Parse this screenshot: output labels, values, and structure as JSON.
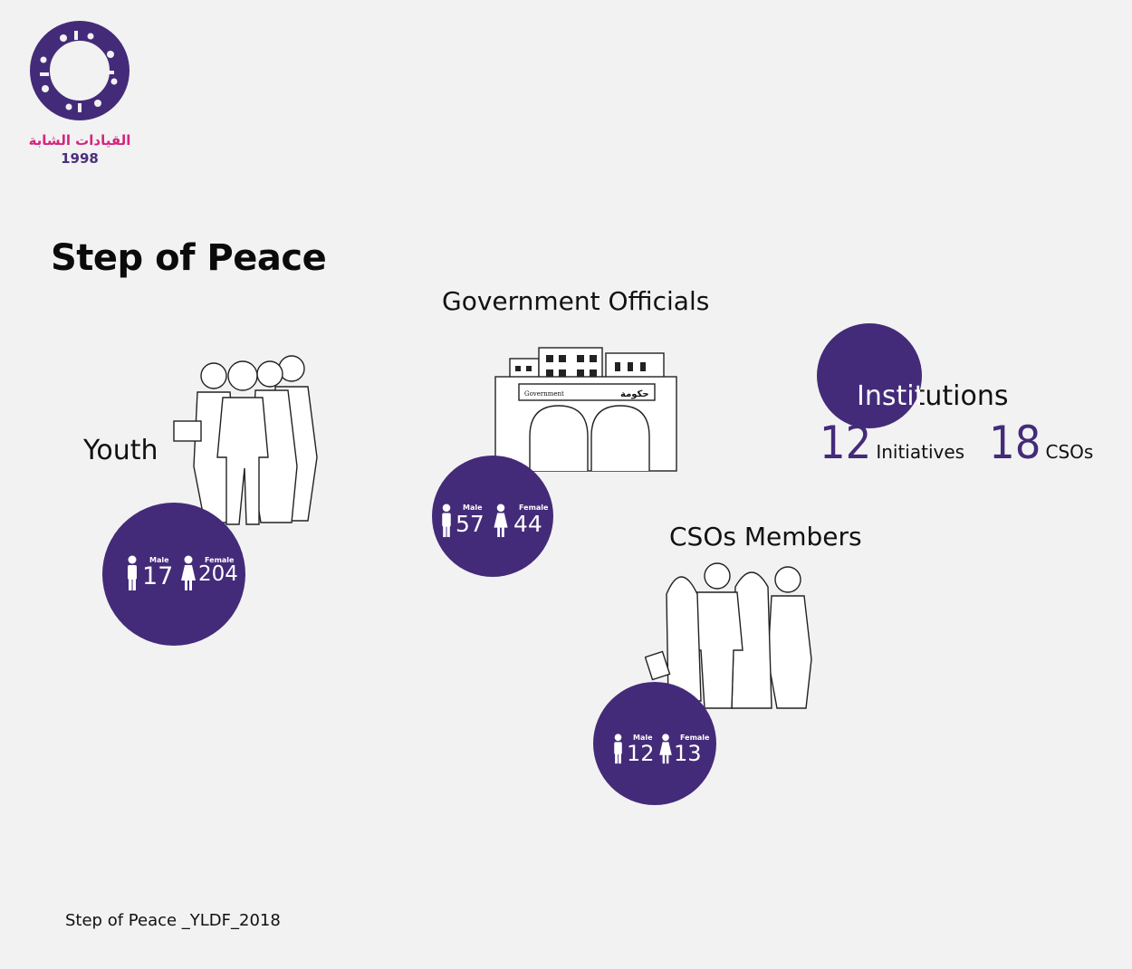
{
  "header": {
    "logo_arabic": "القيادات الشابة",
    "logo_year": "1998",
    "title": "Step of Peace"
  },
  "youth": {
    "label": "Youth",
    "male_label": "Male",
    "male_value": "17",
    "female_label": "Female",
    "female_value": "204"
  },
  "government": {
    "label": "Government Officials",
    "building_sign_en": "Government",
    "building_sign_ar": "حكومة",
    "male_label": "Male",
    "male_value": "57",
    "female_label": "Female",
    "female_value": "44"
  },
  "institutions": {
    "label": "Institutions",
    "initiatives_value": "12",
    "initiatives_label": "Initiatives",
    "csos_value": "18",
    "csos_label": "CSOs"
  },
  "csos_members": {
    "label": "CSOs Members",
    "male_label": "Male",
    "male_value": "12",
    "female_label": "Female",
    "female_value": "13"
  },
  "footer": {
    "text": "Step of Peace _YLDF_2018"
  },
  "colors": {
    "accent": "#432b79",
    "logo_pink": "#d3267e",
    "background": "#f2f2f2"
  },
  "icons": [
    "logo-ring-icon",
    "male-icon",
    "female-icon",
    "youth-group-illustration",
    "government-building-illustration",
    "csos-members-illustration"
  ]
}
